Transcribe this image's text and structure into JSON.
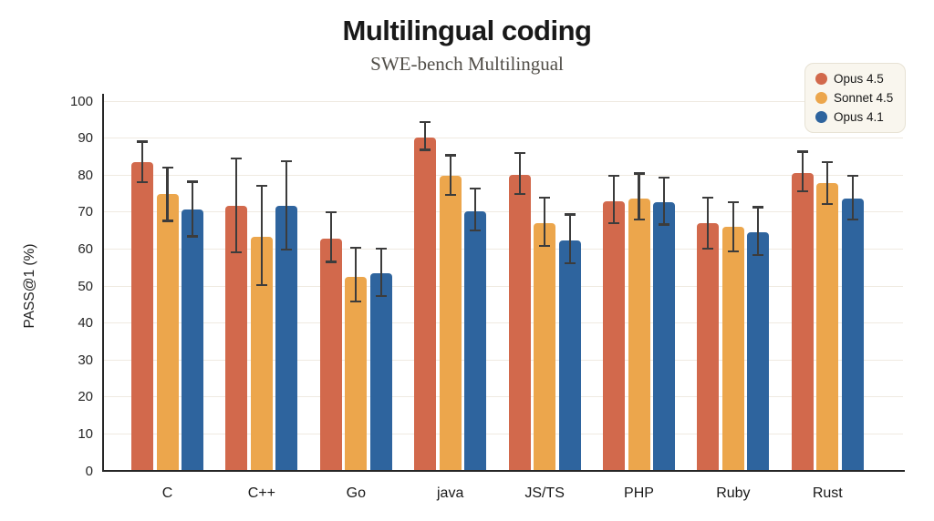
{
  "chart_data": {
    "type": "bar",
    "title": "Multilingual coding",
    "subtitle": "SWE-bench Multilingual",
    "xlabel": "",
    "ylabel": "PASS@1 (%)",
    "ylim": [
      0,
      100
    ],
    "yticks": [
      0,
      10,
      20,
      30,
      40,
      50,
      60,
      70,
      80,
      90,
      100
    ],
    "grid": true,
    "legend_position": "top-right",
    "categories": [
      "C",
      "C++",
      "Go",
      "java",
      "JS/TS",
      "PHP",
      "Ruby",
      "Rust"
    ],
    "series": [
      {
        "name": "Opus 4.5",
        "color": "#d2694c",
        "values": [
          83.3,
          71.5,
          62.8,
          90.1,
          80.0,
          72.9,
          66.8,
          80.4
        ],
        "error_low": [
          78.0,
          59.0,
          56.4,
          86.7,
          74.7,
          66.9,
          60.0,
          75.4
        ],
        "error_high": [
          88.9,
          84.3,
          69.8,
          94.3,
          85.9,
          79.7,
          73.7,
          86.2
        ]
      },
      {
        "name": "Sonnet 4.5",
        "color": "#eca64c",
        "values": [
          74.7,
          63.2,
          52.4,
          79.6,
          66.8,
          73.6,
          65.8,
          77.7
        ],
        "error_low": [
          67.5,
          50.2,
          45.6,
          74.6,
          60.8,
          67.9,
          59.2,
          72.0
        ],
        "error_high": [
          81.8,
          76.9,
          60.2,
          85.2,
          73.7,
          80.3,
          72.6,
          83.4
        ]
      },
      {
        "name": "Opus 4.1",
        "color": "#2e649e",
        "values": [
          70.6,
          71.6,
          53.4,
          70.1,
          62.3,
          72.5,
          64.5,
          73.5
        ],
        "error_low": [
          63.3,
          59.8,
          47.2,
          64.9,
          56.1,
          66.5,
          58.3,
          67.9
        ],
        "error_high": [
          78.1,
          83.6,
          59.9,
          76.2,
          69.2,
          79.2,
          71.2,
          79.6
        ]
      }
    ],
    "error_bar_color": "#3c3c3c",
    "gridline_color": "#efeae1",
    "axis_color": "#262626"
  }
}
